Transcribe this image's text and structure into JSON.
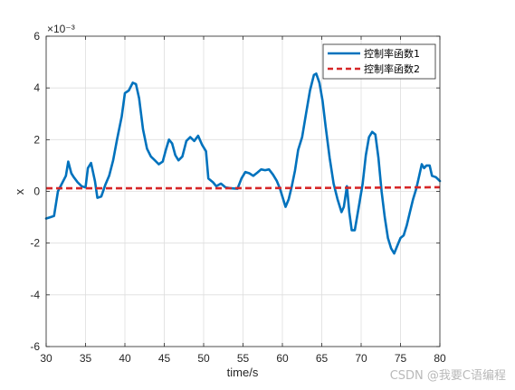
{
  "chart_data": {
    "type": "line",
    "xlabel": "time/s",
    "ylabel": "x",
    "exponent_label": "×10⁻³",
    "xlim": [
      30,
      80
    ],
    "ylim": [
      -6,
      6
    ],
    "x_ticks": [
      "30",
      "35",
      "40",
      "45",
      "50",
      "55",
      "60",
      "65",
      "70",
      "75",
      "80"
    ],
    "y_ticks": [
      "6",
      "4",
      "2",
      "0",
      "-2",
      "-4",
      "-6"
    ],
    "grid": true,
    "legend_position": "top-right",
    "series": [
      {
        "name": "控制率函数1",
        "color": "#0072BD",
        "style": "solid",
        "points": [
          [
            30,
            -1.05
          ],
          [
            30.5,
            -1.0
          ],
          [
            31,
            -0.95
          ],
          [
            31.5,
            0.0
          ],
          [
            32,
            0.3
          ],
          [
            32.5,
            0.6
          ],
          [
            32.8,
            1.15
          ],
          [
            33.2,
            0.7
          ],
          [
            33.5,
            0.55
          ],
          [
            34,
            0.35
          ],
          [
            34.5,
            0.2
          ],
          [
            35,
            0.15
          ],
          [
            35.3,
            0.9
          ],
          [
            35.7,
            1.1
          ],
          [
            36.2,
            0.4
          ],
          [
            36.5,
            -0.25
          ],
          [
            37,
            -0.2
          ],
          [
            37.5,
            0.25
          ],
          [
            38,
            0.6
          ],
          [
            38.5,
            1.2
          ],
          [
            39,
            2.0
          ],
          [
            39.6,
            2.9
          ],
          [
            40,
            3.8
          ],
          [
            40.5,
            3.9
          ],
          [
            41,
            4.2
          ],
          [
            41.4,
            4.15
          ],
          [
            41.8,
            3.6
          ],
          [
            42.3,
            2.4
          ],
          [
            42.8,
            1.65
          ],
          [
            43.3,
            1.35
          ],
          [
            43.8,
            1.2
          ],
          [
            44.3,
            1.05
          ],
          [
            44.8,
            1.15
          ],
          [
            45.2,
            1.6
          ],
          [
            45.6,
            2.0
          ],
          [
            46,
            1.85
          ],
          [
            46.4,
            1.4
          ],
          [
            46.8,
            1.2
          ],
          [
            47.3,
            1.35
          ],
          [
            47.8,
            1.95
          ],
          [
            48.3,
            2.1
          ],
          [
            48.8,
            1.95
          ],
          [
            49.3,
            2.15
          ],
          [
            49.8,
            1.8
          ],
          [
            50.3,
            1.55
          ],
          [
            50.6,
            0.5
          ],
          [
            51.2,
            0.35
          ],
          [
            51.6,
            0.2
          ],
          [
            52.2,
            0.3
          ],
          [
            52.8,
            0.15
          ],
          [
            53.5,
            0.12
          ],
          [
            54.3,
            0.1
          ],
          [
            54.8,
            0.5
          ],
          [
            55.3,
            0.75
          ],
          [
            55.8,
            0.7
          ],
          [
            56.3,
            0.6
          ],
          [
            56.8,
            0.72
          ],
          [
            57.3,
            0.85
          ],
          [
            57.8,
            0.82
          ],
          [
            58.3,
            0.85
          ],
          [
            58.8,
            0.65
          ],
          [
            59.3,
            0.4
          ],
          [
            59.7,
            0.1
          ],
          [
            60,
            -0.2
          ],
          [
            60.4,
            -0.6
          ],
          [
            60.8,
            -0.3
          ],
          [
            61.2,
            0.2
          ],
          [
            61.6,
            0.8
          ],
          [
            62,
            1.6
          ],
          [
            62.5,
            2.1
          ],
          [
            63,
            3.0
          ],
          [
            63.5,
            3.9
          ],
          [
            64,
            4.5
          ],
          [
            64.3,
            4.55
          ],
          [
            64.7,
            4.2
          ],
          [
            65.1,
            3.5
          ],
          [
            65.5,
            2.5
          ],
          [
            66,
            1.3
          ],
          [
            66.5,
            0.3
          ],
          [
            67,
            -0.3
          ],
          [
            67.5,
            -0.8
          ],
          [
            67.8,
            -0.6
          ],
          [
            68.2,
            0.2
          ],
          [
            68.5,
            -0.8
          ],
          [
            68.8,
            -1.5
          ],
          [
            69.2,
            -1.5
          ],
          [
            69.7,
            -0.6
          ],
          [
            70.2,
            0.3
          ],
          [
            70.6,
            1.4
          ],
          [
            71,
            2.1
          ],
          [
            71.4,
            2.3
          ],
          [
            71.8,
            2.2
          ],
          [
            72.2,
            1.3
          ],
          [
            72.6,
            0.0
          ],
          [
            73,
            -1.0
          ],
          [
            73.4,
            -1.8
          ],
          [
            73.8,
            -2.2
          ],
          [
            74.2,
            -2.4
          ],
          [
            74.6,
            -2.1
          ],
          [
            75,
            -1.8
          ],
          [
            75.4,
            -1.7
          ],
          [
            75.8,
            -1.3
          ],
          [
            76.2,
            -0.8
          ],
          [
            76.6,
            -0.3
          ],
          [
            77,
            0.1
          ],
          [
            77.3,
            0.5
          ],
          [
            77.7,
            1.05
          ],
          [
            78,
            0.9
          ],
          [
            78.3,
            1.0
          ],
          [
            78.7,
            1.0
          ],
          [
            79,
            0.6
          ],
          [
            79.5,
            0.55
          ],
          [
            80,
            0.4
          ]
        ]
      },
      {
        "name": "控制率函数2",
        "color": "#D62728",
        "style": "dashed",
        "points": [
          [
            30,
            0.12
          ],
          [
            40,
            0.12
          ],
          [
            50,
            0.12
          ],
          [
            60,
            0.13
          ],
          [
            70,
            0.14
          ],
          [
            80,
            0.16
          ]
        ]
      }
    ]
  },
  "watermark": "CSDN @我要C语编程"
}
